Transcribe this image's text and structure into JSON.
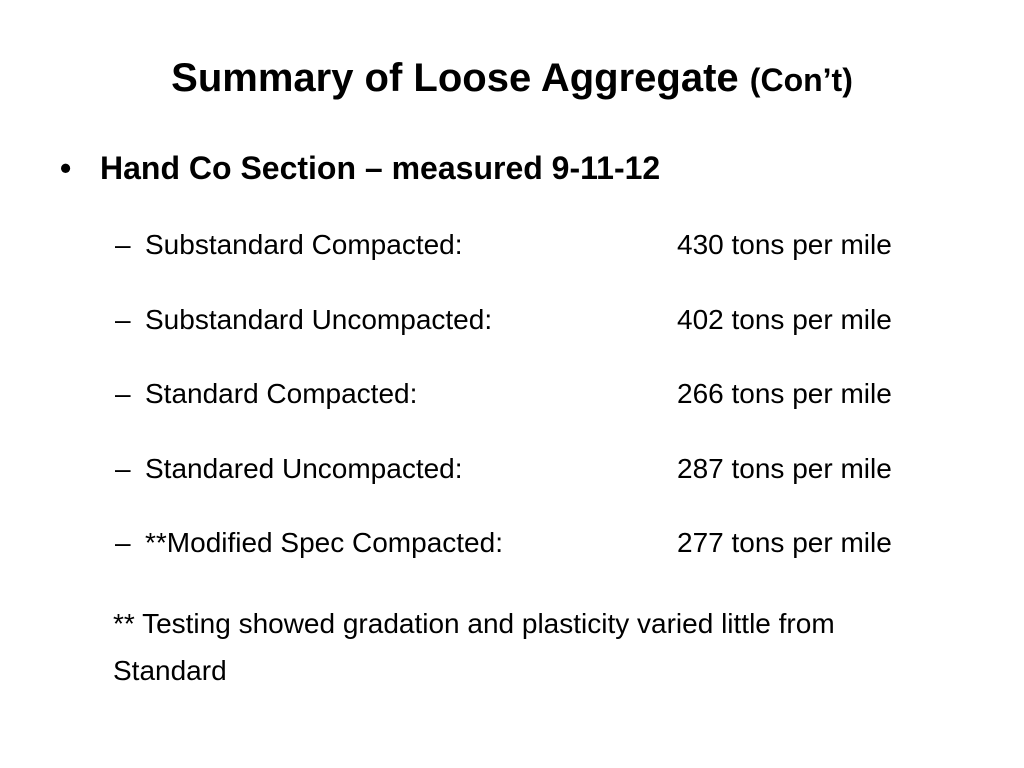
{
  "title": {
    "main": "Summary of Loose Aggregate",
    "suffix": "(Con’t)"
  },
  "bullet": {
    "marker": "•",
    "text": "Hand Co Section – measured 9-11-12"
  },
  "items": [
    {
      "marker": "–",
      "label": "Substandard Compacted:",
      "value": "430 tons per mile"
    },
    {
      "marker": "–",
      "label": "Substandard Uncompacted:",
      "value": "402 tons per mile"
    },
    {
      "marker": "–",
      "label": "Standard Compacted:",
      "value": "266 tons per mile"
    },
    {
      "marker": "–",
      "label": "Standared Uncompacted:",
      "value": "287 tons per mile"
    },
    {
      "marker": "–",
      "label": "**Modified Spec Compacted:",
      "value": "277 tons per mile"
    }
  ],
  "note": "** Testing showed gradation and plasticity varied little from Standard"
}
